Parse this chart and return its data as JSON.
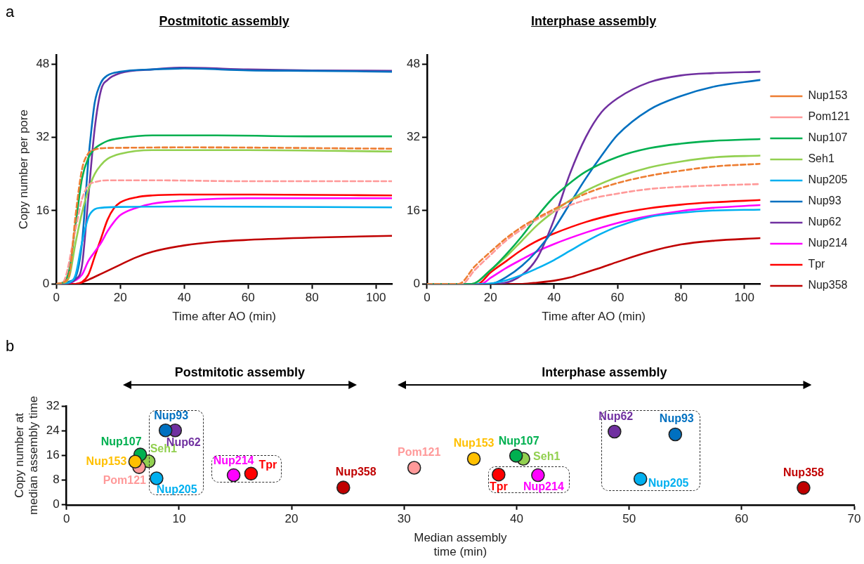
{
  "chart_data": [
    {
      "type": "line",
      "title": "Postmitotic assembly",
      "xlabel": "Time after AO (min)",
      "ylabel": "Copy number per pore",
      "annotations": [
        "a"
      ],
      "xlim": [
        0,
        105
      ],
      "ylim": [
        0,
        50
      ],
      "xticks": [
        0,
        20,
        40,
        60,
        80,
        100
      ],
      "yticks": [
        0,
        16,
        32,
        48
      ],
      "series": [
        {
          "color": "#ed7d31",
          "line_style": "dashed",
          "x": [
            0,
            2,
            4,
            6,
            8,
            10,
            12,
            14,
            20,
            40,
            105
          ],
          "values": [
            0,
            0.3,
            2,
            15,
            25,
            28.5,
            29.3,
            29.6,
            29.7,
            29.8,
            29.5
          ]
        },
        {
          "color": "#ff9999",
          "line_style": "dashed",
          "x": [
            0,
            2,
            6,
            8,
            10,
            12,
            16,
            30,
            60,
            105
          ],
          "values": [
            0,
            0.3,
            12,
            18.5,
            21.5,
            22.2,
            22.6,
            22.6,
            22.4,
            22.4
          ]
        },
        {
          "color": "#00b050",
          "x": [
            0,
            2,
            4,
            6,
            8,
            10,
            12,
            14,
            16,
            20,
            30,
            50,
            80,
            105
          ],
          "values": [
            0,
            0.3,
            3,
            13,
            23,
            27.5,
            29.5,
            30.5,
            31.2,
            31.8,
            32.4,
            32.4,
            32.2,
            32.2
          ]
        },
        {
          "color": "#92d050",
          "x": [
            0,
            2,
            4,
            6,
            8,
            10,
            12,
            14,
            16,
            20,
            30,
            60,
            105
          ],
          "values": [
            0,
            0.2,
            1.5,
            9,
            15.5,
            20.5,
            24,
            26,
            27.3,
            28.4,
            29.2,
            29.2,
            28.9
          ]
        },
        {
          "color": "#00b0f0",
          "x": [
            0,
            2,
            4,
            6,
            8,
            10,
            12,
            14,
            20,
            40,
            105
          ],
          "values": [
            0,
            0,
            0.3,
            2,
            9,
            14.5,
            16.3,
            16.6,
            16.8,
            16.9,
            16.7
          ]
        },
        {
          "color": "#0070c0",
          "x": [
            0,
            2,
            4,
            6,
            8,
            10,
            11,
            12,
            14,
            16,
            20,
            30,
            40,
            60,
            80,
            105
          ],
          "values": [
            0,
            0,
            0.5,
            1.5,
            9,
            27,
            34,
            39.6,
            44,
            45.5,
            46.3,
            46.8,
            47,
            46.6,
            46.5,
            46.3
          ]
        },
        {
          "color": "#7030a0",
          "x": [
            0,
            2,
            4,
            6,
            8,
            10,
            12,
            14,
            16,
            20,
            30,
            40,
            60,
            80,
            105
          ],
          "values": [
            0,
            0,
            0.2,
            1,
            4,
            19,
            34,
            42.4,
            44.5,
            46,
            46.8,
            47.2,
            46.8,
            46.6,
            46.5
          ]
        },
        {
          "color": "#ff00ff",
          "x": [
            0,
            4,
            6,
            8,
            10,
            12,
            14,
            16,
            18,
            20,
            25,
            30,
            40,
            60,
            105
          ],
          "values": [
            0,
            0.2,
            0.8,
            2,
            5,
            7,
            9,
            11.5,
            13.5,
            15,
            16.6,
            17.5,
            18.2,
            18.7,
            18.7
          ]
        },
        {
          "color": "#ff0000",
          "x": [
            0,
            6,
            8,
            10,
            12,
            14,
            16,
            18,
            20,
            25,
            30,
            40,
            60,
            105
          ],
          "values": [
            0,
            0,
            0.4,
            2,
            6,
            10,
            14,
            16.5,
            17.8,
            18.9,
            19.3,
            19.5,
            19.5,
            19.3
          ]
        },
        {
          "color": "#c00000",
          "x": [
            0,
            6,
            8,
            10,
            14,
            20,
            25,
            30,
            40,
            50,
            60,
            80,
            105
          ],
          "values": [
            0,
            0,
            0.3,
            0.9,
            2.2,
            4.2,
            5.8,
            7,
            8.4,
            9.2,
            9.6,
            10.1,
            10.5
          ]
        }
      ]
    },
    {
      "type": "line",
      "title": "Interphase assembly",
      "xlabel": "Time after AO (min)",
      "legend": "right",
      "xlim": [
        0,
        105
      ],
      "ylim": [
        0,
        50
      ],
      "xticks": [
        0,
        20,
        40,
        60,
        80,
        100
      ],
      "yticks": [
        0,
        16,
        32,
        48
      ],
      "series": [
        {
          "name": "Nup153",
          "color": "#ed7d31",
          "line_style": "dashed",
          "x": [
            0,
            10,
            15,
            20,
            25,
            30,
            35,
            40,
            50,
            60,
            70,
            80,
            90,
            105
          ],
          "values": [
            0,
            0,
            3.8,
            7,
            10,
            12.5,
            14.5,
            16.3,
            19.7,
            22,
            23.6,
            24.7,
            25.6,
            26.2
          ]
        },
        {
          "name": "Pom121",
          "color": "#ff9999",
          "line_style": "dashed",
          "x": [
            0,
            11,
            15,
            20,
            25,
            30,
            35,
            40,
            50,
            60,
            70,
            80,
            105
          ],
          "values": [
            0,
            0,
            3,
            6.3,
            9.5,
            12,
            14.2,
            15.8,
            18.3,
            19.7,
            20.7,
            21.2,
            21.8
          ]
        },
        {
          "name": "Nup107",
          "color": "#00b050",
          "x": [
            0,
            14,
            20,
            25,
            30,
            35,
            40,
            45,
            50,
            60,
            70,
            80,
            90,
            105
          ],
          "values": [
            0,
            0,
            3,
            6.5,
            10.5,
            15,
            19,
            22,
            24.5,
            27.7,
            29.6,
            30.6,
            31.2,
            31.6
          ]
        },
        {
          "name": "Seh1",
          "color": "#92d050",
          "x": [
            0,
            14,
            20,
            25,
            30,
            35,
            40,
            45,
            50,
            60,
            70,
            80,
            90,
            105
          ],
          "values": [
            0,
            0,
            3,
            6,
            9.5,
            13,
            15.8,
            18.2,
            20.3,
            23.3,
            25.4,
            26.7,
            27.6,
            28
          ]
        },
        {
          "name": "Nup205",
          "color": "#00b0f0",
          "x": [
            0,
            18,
            25,
            30,
            35,
            40,
            45,
            50,
            55,
            60,
            70,
            80,
            90,
            105
          ],
          "values": [
            0,
            0,
            0.8,
            2,
            3.5,
            5.2,
            7.2,
            9.2,
            11,
            12.5,
            14.6,
            15.5,
            16,
            16.2
          ]
        },
        {
          "name": "Nup93",
          "color": "#0070c0",
          "x": [
            0,
            20,
            25,
            30,
            35,
            40,
            45,
            50,
            55,
            60,
            70,
            80,
            90,
            105
          ],
          "values": [
            0,
            0,
            1.5,
            4,
            7.5,
            12,
            17.5,
            23,
            28,
            32.5,
            38,
            41,
            43,
            44.5
          ]
        },
        {
          "name": "Nup62",
          "color": "#7030a0",
          "x": [
            0,
            22,
            30,
            35,
            40,
            45,
            50,
            55,
            60,
            70,
            80,
            90,
            105
          ],
          "values": [
            0,
            0,
            2,
            6,
            14,
            24,
            32,
            37.5,
            40.5,
            44,
            45.5,
            46,
            46.3
          ]
        },
        {
          "name": "Nup214",
          "color": "#ff00ff",
          "x": [
            0,
            17,
            20,
            25,
            30,
            35,
            40,
            50,
            60,
            70,
            80,
            90,
            105
          ],
          "values": [
            0,
            0,
            1.3,
            3.5,
            5.4,
            7.2,
            8.7,
            11.2,
            13.3,
            14.8,
            15.9,
            16.6,
            17.2
          ]
        },
        {
          "name": "Tpr",
          "color": "#ff0000",
          "x": [
            0,
            16,
            20,
            25,
            30,
            35,
            40,
            50,
            60,
            70,
            80,
            90,
            105
          ],
          "values": [
            0,
            0,
            2.5,
            5,
            7.5,
            9.5,
            11,
            13.5,
            15.3,
            16.5,
            17.3,
            17.8,
            18.3
          ]
        },
        {
          "name": "Nup358",
          "color": "#c00000",
          "x": [
            0,
            30,
            35,
            40,
            45,
            50,
            55,
            60,
            70,
            80,
            90,
            105
          ],
          "values": [
            0,
            0,
            0.3,
            0.7,
            1.4,
            2.5,
            3.6,
            4.8,
            7,
            8.6,
            9.4,
            10
          ]
        }
      ]
    },
    {
      "type": "scatter",
      "xlabel": "Median assembly time (min)",
      "ylabel": "Copy number at median assembly time",
      "marker": "circle",
      "annotations": [
        "b",
        "Postmitotic assembly",
        "Interphase assembly"
      ],
      "xlim": [
        0,
        70
      ],
      "ylim": [
        0,
        32
      ],
      "xticks": [
        0,
        10,
        20,
        30,
        40,
        50,
        60,
        70
      ],
      "yticks": [
        0,
        8,
        16,
        24,
        32
      ],
      "series": [
        {
          "name": "Nup153",
          "color": "#ffc000",
          "x": [
            6.1,
            36.2
          ],
          "values": [
            14,
            14.9
          ]
        },
        {
          "name": "Pom121",
          "color": "#ff9999",
          "x": [
            6.45,
            30.9
          ],
          "values": [
            12.2,
            12
          ]
        },
        {
          "name": "Nup107",
          "color": "#00b050",
          "x": [
            6.55,
            39.95
          ],
          "values": [
            16.3,
            15.9
          ]
        },
        {
          "name": "Seh1",
          "color": "#92d050",
          "x": [
            7.3,
            40.6
          ],
          "values": [
            14.1,
            14.9
          ]
        },
        {
          "name": "Nup205",
          "color": "#00b0f0",
          "x": [
            8,
            51
          ],
          "values": [
            8.6,
            8.4
          ]
        },
        {
          "name": "Nup93",
          "color": "#0070c0",
          "x": [
            8.8,
            54.1
          ],
          "values": [
            24.1,
            22.8
          ]
        },
        {
          "name": "Nup62",
          "color": "#7030a0",
          "x": [
            9.65,
            48.7
          ],
          "values": [
            24.1,
            23.7
          ]
        },
        {
          "name": "Nup214",
          "color": "#ff00ff",
          "x": [
            14.85,
            41.9
          ],
          "values": [
            9.6,
            9.6
          ]
        },
        {
          "name": "Tpr",
          "color": "#ff0000",
          "x": [
            16.4,
            38.4
          ],
          "values": [
            10.1,
            9.8
          ]
        },
        {
          "name": "Nup358",
          "color": "#c00000",
          "x": [
            24.6,
            65.5
          ],
          "values": [
            5.6,
            5.5
          ]
        }
      ]
    }
  ]
}
